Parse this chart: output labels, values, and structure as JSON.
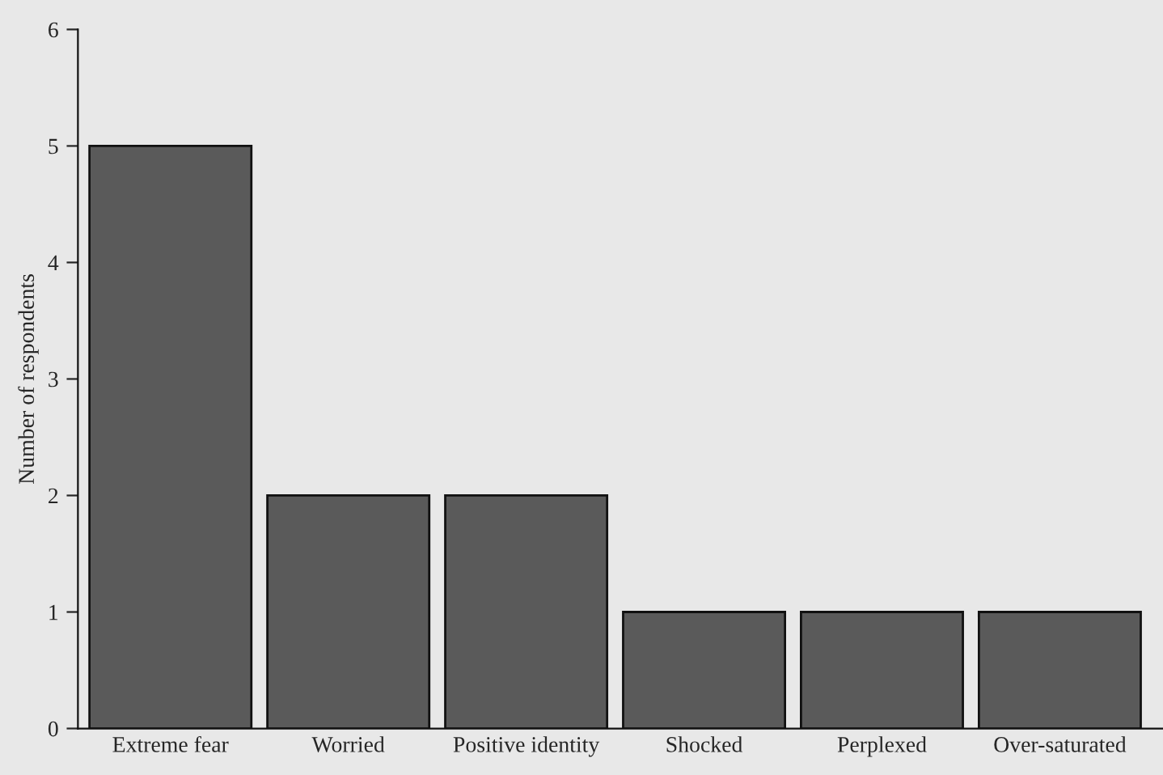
{
  "chart_data": {
    "type": "bar",
    "ylabel": "Number of respondents",
    "categories": [
      "Extreme fear",
      "Worried",
      "Positive identity",
      "Shocked",
      "Perplexed",
      "Over-saturated"
    ],
    "values": [
      5,
      2,
      2,
      1,
      1,
      1
    ],
    "color": "#5a5a5a",
    "ylim": [
      0,
      6
    ],
    "yticks": [
      0,
      1,
      2,
      3,
      4,
      5,
      6
    ],
    "grid": false,
    "legend": false
  }
}
